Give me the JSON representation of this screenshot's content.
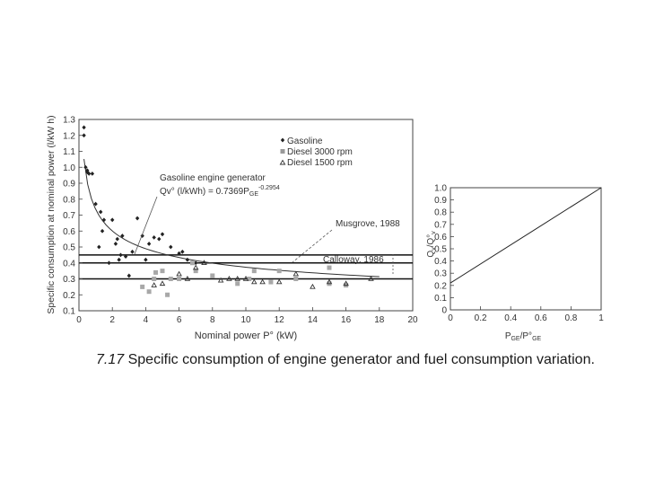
{
  "chart_data": [
    {
      "type": "scatter",
      "ylabel": "Specific consumption at nominal power (l/kW h)",
      "xlabel": "Nominal power P° (kW)",
      "xlim": [
        0,
        20
      ],
      "ylim": [
        0.1,
        1.3
      ],
      "xticks": [
        "0",
        "2",
        "4",
        "6",
        "8",
        "10",
        "12",
        "14",
        "16",
        "18",
        "20"
      ],
      "yticks": [
        "0.1",
        "0.2",
        "0.3",
        "0.4",
        "0.5",
        "0.6",
        "0.7",
        "0.8",
        "0.9",
        "1.0",
        "1.1",
        "1.2",
        "1.3"
      ],
      "grid": false,
      "legend": [
        {
          "label": "Gasoline",
          "marker": "diamond"
        },
        {
          "label": "Diesel 3000 rpm",
          "marker": "square"
        },
        {
          "label": "Diesel 1500 rpm",
          "marker": "triangle"
        }
      ],
      "annotations": {
        "fit_label_line1": "Gasoline engine generator",
        "fit_label_line2": "Qv° (l/kWh) = 0.7369P",
        "fit_label_sub": "GE",
        "fit_label_sup": "-0.2954",
        "musgrove": "Musgrove, 1988",
        "calloway": "Calloway, 1986"
      },
      "fit": {
        "coef": 0.7369,
        "exponent": -0.2954,
        "x_range": [
          0.3,
          18
        ]
      },
      "horizontal_lines": [
        0.45,
        0.4,
        0.3
      ],
      "series": [
        {
          "name": "Gasoline",
          "marker": "diamond",
          "x": [
            0.3,
            0.3,
            0.4,
            0.5,
            0.5,
            0.6,
            0.8,
            1.0,
            1.2,
            1.3,
            1.4,
            1.5,
            1.8,
            2.0,
            2.2,
            2.3,
            2.4,
            2.5,
            2.6,
            2.8,
            3.0,
            3.2,
            3.5,
            3.8,
            4.0,
            4.2,
            4.5,
            4.8,
            5.0,
            5.5,
            6.0,
            6.2,
            6.5,
            7.0
          ],
          "y": [
            1.25,
            1.2,
            1.0,
            0.98,
            0.97,
            0.96,
            0.96,
            0.77,
            0.5,
            0.72,
            0.6,
            0.67,
            0.4,
            0.67,
            0.52,
            0.55,
            0.42,
            0.45,
            0.57,
            0.44,
            0.32,
            0.47,
            0.68,
            0.57,
            0.42,
            0.52,
            0.56,
            0.55,
            0.58,
            0.5,
            0.46,
            0.47,
            0.42,
            0.4
          ]
        },
        {
          "name": "Diesel 3000 rpm",
          "marker": "square",
          "x": [
            3.8,
            4.2,
            4.5,
            4.6,
            5.0,
            5.3,
            5.5,
            6.0,
            6.8,
            7.0,
            8.0,
            9.5,
            10.2,
            10.5,
            11.5,
            12.0,
            13.0,
            15.0,
            15.0,
            16.0
          ],
          "y": [
            0.25,
            0.22,
            0.3,
            0.34,
            0.35,
            0.2,
            0.3,
            0.3,
            0.4,
            0.35,
            0.32,
            0.27,
            0.3,
            0.35,
            0.28,
            0.35,
            0.3,
            0.37,
            0.27,
            0.26
          ]
        },
        {
          "name": "Diesel 1500 rpm",
          "marker": "triangle",
          "x": [
            4.5,
            5.0,
            6.0,
            6.5,
            7.0,
            7.5,
            8.5,
            9.0,
            9.5,
            10.0,
            10.5,
            11.0,
            12.0,
            13.0,
            14.0,
            15.0,
            16.0,
            17.5
          ],
          "y": [
            0.26,
            0.27,
            0.33,
            0.3,
            0.37,
            0.4,
            0.29,
            0.3,
            0.3,
            0.3,
            0.28,
            0.28,
            0.28,
            0.33,
            0.25,
            0.28,
            0.27,
            0.3
          ]
        }
      ]
    },
    {
      "type": "line",
      "xlabel_main": "P",
      "xlabel_sub1": "GE",
      "xlabel_mid": "/P°",
      "xlabel_sub2": "GE",
      "ylabel_main": "Q",
      "ylabel_sub1": "v",
      "ylabel_mid": "/Q°",
      "ylabel_sub2": "v",
      "xlim": [
        0,
        1
      ],
      "ylim": [
        0,
        1
      ],
      "xticks": [
        "0",
        "0.2",
        "0.4",
        "0.6",
        "0.8",
        "1"
      ],
      "yticks": [
        "0",
        "0.1",
        "0.2",
        "0.3",
        "0.4",
        "0.5",
        "0.6",
        "0.7",
        "0.8",
        "0.9",
        "1.0"
      ],
      "grid": false,
      "series": [
        {
          "x": [
            0,
            1
          ],
          "y": [
            0.22,
            1.0
          ]
        }
      ]
    }
  ],
  "caption": {
    "number": "7.17",
    "text": "Specific consumption of engine generator and fuel consumption variation."
  }
}
